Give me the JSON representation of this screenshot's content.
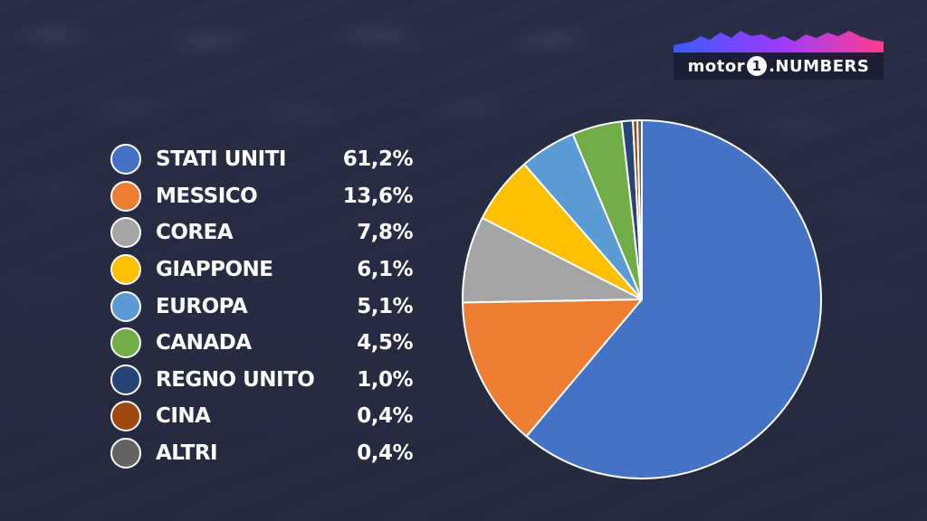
{
  "brand": {
    "logo_text_left": "motor",
    "logo_number": "1",
    "logo_text_right": ".NUMBERS"
  },
  "chart_data": {
    "type": "pie",
    "title": "",
    "slices": [
      {
        "label": "STATI UNITI",
        "value": 61.2,
        "display": "61,2%",
        "color": "#4472c4"
      },
      {
        "label": "MESSICO",
        "value": 13.6,
        "display": "13,6%",
        "color": "#ed7d31"
      },
      {
        "label": "COREA",
        "value": 7.8,
        "display": "7,8%",
        "color": "#a5a5a5"
      },
      {
        "label": "GIAPPONE",
        "value": 6.1,
        "display": "6,1%",
        "color": "#ffc000"
      },
      {
        "label": "EUROPA",
        "value": 5.1,
        "display": "5,1%",
        "color": "#5b9bd5"
      },
      {
        "label": "CANADA",
        "value": 4.5,
        "display": "4,5%",
        "color": "#70ad47"
      },
      {
        "label": "REGNO UNITO",
        "value": 1.0,
        "display": "1,0%",
        "color": "#264478"
      },
      {
        "label": "CINA",
        "value": 0.4,
        "display": "0,4%",
        "color": "#9e480e"
      },
      {
        "label": "ALTRI",
        "value": 0.4,
        "display": "0,4%",
        "color": "#636363"
      }
    ],
    "start_angle_deg": 0,
    "direction": "clockwise",
    "legend_position": "left"
  }
}
